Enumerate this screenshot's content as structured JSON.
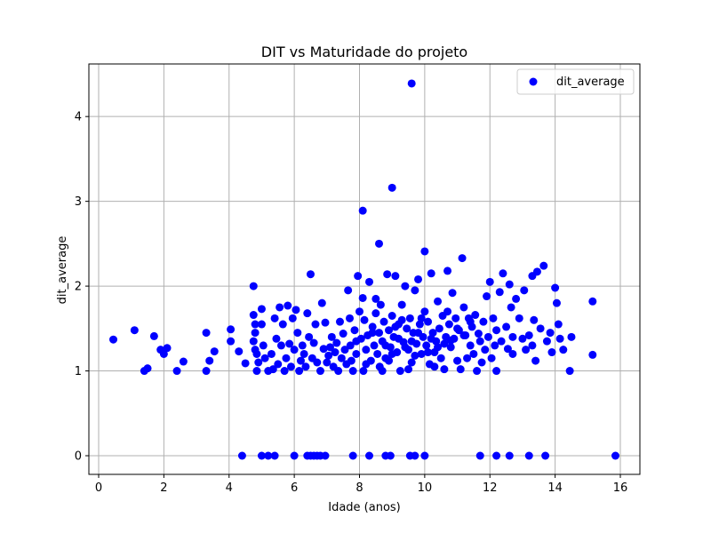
{
  "chart_data": {
    "type": "scatter",
    "title": "DIT vs Maturidade do projeto",
    "xlabel": "Idade (anos)",
    "ylabel": "dit_average",
    "xlim": [
      -0.3,
      16.6
    ],
    "ylim": [
      -0.22,
      4.62
    ],
    "xticks": [
      0,
      2,
      4,
      6,
      8,
      10,
      12,
      14,
      16
    ],
    "yticks": [
      0,
      1,
      2,
      3,
      4
    ],
    "grid": true,
    "legend": {
      "position": "top-right",
      "entries": [
        "dit_average"
      ]
    },
    "series": [
      {
        "name": "dit_average",
        "color": "#0000ff",
        "points": [
          [
            0.45,
            1.37
          ],
          [
            1.1,
            1.48
          ],
          [
            1.4,
            1.0
          ],
          [
            1.5,
            1.03
          ],
          [
            1.7,
            1.41
          ],
          [
            1.9,
            1.25
          ],
          [
            2.0,
            1.2
          ],
          [
            2.1,
            1.27
          ],
          [
            2.4,
            1.0
          ],
          [
            2.6,
            1.11
          ],
          [
            3.3,
            1.0
          ],
          [
            3.3,
            1.45
          ],
          [
            3.4,
            1.12
          ],
          [
            3.55,
            1.23
          ],
          [
            4.05,
            1.49
          ],
          [
            4.05,
            1.35
          ],
          [
            4.3,
            1.23
          ],
          [
            4.5,
            1.09
          ],
          [
            4.75,
            2.0
          ],
          [
            4.75,
            1.66
          ],
          [
            4.8,
            1.55
          ],
          [
            4.8,
            1.45
          ],
          [
            4.75,
            1.35
          ],
          [
            4.8,
            1.25
          ],
          [
            4.85,
            1.2
          ],
          [
            4.9,
            1.1
          ],
          [
            4.85,
            1.0
          ],
          [
            5.0,
            1.73
          ],
          [
            5.0,
            1.55
          ],
          [
            5.05,
            1.3
          ],
          [
            5.1,
            1.15
          ],
          [
            5.2,
            1.0
          ],
          [
            5.3,
            1.2
          ],
          [
            5.35,
            1.02
          ],
          [
            5.4,
            1.62
          ],
          [
            5.45,
            1.38
          ],
          [
            5.5,
            1.08
          ],
          [
            5.55,
            1.75
          ],
          [
            5.6,
            1.3
          ],
          [
            5.65,
            1.55
          ],
          [
            5.7,
            1.0
          ],
          [
            5.75,
            1.15
          ],
          [
            5.8,
            1.77
          ],
          [
            5.85,
            1.32
          ],
          [
            5.9,
            1.05
          ],
          [
            5.95,
            1.62
          ],
          [
            6.0,
            1.25
          ],
          [
            6.05,
            1.72
          ],
          [
            6.1,
            1.45
          ],
          [
            6.15,
            1.0
          ],
          [
            6.2,
            1.12
          ],
          [
            6.25,
            1.3
          ],
          [
            6.3,
            1.2
          ],
          [
            6.35,
            1.05
          ],
          [
            6.4,
            1.68
          ],
          [
            6.45,
            1.4
          ],
          [
            6.5,
            2.14
          ],
          [
            6.55,
            1.15
          ],
          [
            6.6,
            1.33
          ],
          [
            6.65,
            1.55
          ],
          [
            6.7,
            1.1
          ],
          [
            6.8,
            1.0
          ],
          [
            6.85,
            1.8
          ],
          [
            6.9,
            1.26
          ],
          [
            6.95,
            1.57
          ],
          [
            7.0,
            1.1
          ],
          [
            7.05,
            1.18
          ],
          [
            7.1,
            1.28
          ],
          [
            7.15,
            1.4
          ],
          [
            7.2,
            1.05
          ],
          [
            7.25,
            1.22
          ],
          [
            7.3,
            1.33
          ],
          [
            7.35,
            1.0
          ],
          [
            7.4,
            1.58
          ],
          [
            7.45,
            1.15
          ],
          [
            7.5,
            1.44
          ],
          [
            7.55,
            1.25
          ],
          [
            7.6,
            1.08
          ],
          [
            7.65,
            1.95
          ],
          [
            7.7,
            1.62
          ],
          [
            7.72,
            1.3
          ],
          [
            7.75,
            1.12
          ],
          [
            7.8,
            1.0
          ],
          [
            7.85,
            1.48
          ],
          [
            7.9,
            1.2
          ],
          [
            7.95,
            2.12
          ],
          [
            8.0,
            1.7
          ],
          [
            8.05,
            1.38
          ],
          [
            8.1,
            1.86
          ],
          [
            8.12,
            1.0
          ],
          [
            8.15,
            1.6
          ],
          [
            8.2,
            1.25
          ],
          [
            8.25,
            1.42
          ],
          [
            8.3,
            2.05
          ],
          [
            8.35,
            1.12
          ],
          [
            8.4,
            1.52
          ],
          [
            8.45,
            1.3
          ],
          [
            8.5,
            1.68
          ],
          [
            8.55,
            1.2
          ],
          [
            8.6,
            1.45
          ],
          [
            8.62,
            1.05
          ],
          [
            8.65,
            1.78
          ],
          [
            8.7,
            1.35
          ],
          [
            8.75,
            1.58
          ],
          [
            8.8,
            1.15
          ],
          [
            8.85,
            2.14
          ],
          [
            8.9,
            1.48
          ],
          [
            8.95,
            1.28
          ],
          [
            9.0,
            1.65
          ],
          [
            9.05,
            1.4
          ],
          [
            9.1,
            2.12
          ],
          [
            9.15,
            1.22
          ],
          [
            9.2,
            1.55
          ],
          [
            9.25,
            1.0
          ],
          [
            9.3,
            1.78
          ],
          [
            9.35,
            1.34
          ],
          [
            9.4,
            2.0
          ],
          [
            9.45,
            1.5
          ],
          [
            9.5,
            1.25
          ],
          [
            9.55,
            1.62
          ],
          [
            9.6,
            1.1
          ],
          [
            9.65,
            1.45
          ],
          [
            9.7,
            1.95
          ],
          [
            9.75,
            1.32
          ],
          [
            9.8,
            2.08
          ],
          [
            9.85,
            1.55
          ],
          [
            9.9,
            1.2
          ],
          [
            9.95,
            1.4
          ],
          [
            10.0,
            1.7
          ],
          [
            10.05,
            1.3
          ],
          [
            10.1,
            1.58
          ],
          [
            10.15,
            1.08
          ],
          [
            10.2,
            2.15
          ],
          [
            10.25,
            1.45
          ],
          [
            10.3,
            1.22
          ],
          [
            10.35,
            1.35
          ],
          [
            10.4,
            1.82
          ],
          [
            10.45,
            1.5
          ],
          [
            10.5,
            1.15
          ],
          [
            10.55,
            1.65
          ],
          [
            10.6,
            1.02
          ],
          [
            10.65,
            1.4
          ],
          [
            10.7,
            2.18
          ],
          [
            10.75,
            1.55
          ],
          [
            10.8,
            1.28
          ],
          [
            10.85,
            1.92
          ],
          [
            10.9,
            1.38
          ],
          [
            10.95,
            1.62
          ],
          [
            11.0,
            1.12
          ],
          [
            11.05,
            1.48
          ],
          [
            11.1,
            1.02
          ],
          [
            11.15,
            2.33
          ],
          [
            11.2,
            1.75
          ],
          [
            11.25,
            1.42
          ],
          [
            11.3,
            1.15
          ],
          [
            11.35,
            1.62
          ],
          [
            11.4,
            1.3
          ],
          [
            11.45,
            1.52
          ],
          [
            11.5,
            1.2
          ],
          [
            11.55,
            1.66
          ],
          [
            11.6,
            1.0
          ],
          [
            11.65,
            1.44
          ],
          [
            11.7,
            1.35
          ],
          [
            11.75,
            1.1
          ],
          [
            11.8,
            1.58
          ],
          [
            11.85,
            1.25
          ],
          [
            11.9,
            1.88
          ],
          [
            11.95,
            1.4
          ],
          [
            12.0,
            2.05
          ],
          [
            12.05,
            1.15
          ],
          [
            12.1,
            1.62
          ],
          [
            12.15,
            1.3
          ],
          [
            12.2,
            1.0
          ],
          [
            12.3,
            1.93
          ],
          [
            12.35,
            1.35
          ],
          [
            12.4,
            2.15
          ],
          [
            12.5,
            1.52
          ],
          [
            12.55,
            1.26
          ],
          [
            12.6,
            2.02
          ],
          [
            12.65,
            1.75
          ],
          [
            12.7,
            1.4
          ],
          [
            12.8,
            1.85
          ],
          [
            12.9,
            1.62
          ],
          [
            13.0,
            1.38
          ],
          [
            13.05,
            1.95
          ],
          [
            13.1,
            1.25
          ],
          [
            13.2,
            1.42
          ],
          [
            13.3,
            2.12
          ],
          [
            13.35,
            1.6
          ],
          [
            13.4,
            1.12
          ],
          [
            13.45,
            2.17
          ],
          [
            13.55,
            1.5
          ],
          [
            13.65,
            2.24
          ],
          [
            13.75,
            1.35
          ],
          [
            13.85,
            1.45
          ],
          [
            13.9,
            1.22
          ],
          [
            14.0,
            1.98
          ],
          [
            14.05,
            1.8
          ],
          [
            14.1,
            1.55
          ],
          [
            14.15,
            1.38
          ],
          [
            14.25,
            1.25
          ],
          [
            14.45,
            1.0
          ],
          [
            14.5,
            1.4
          ],
          [
            15.15,
            1.82
          ],
          [
            15.15,
            1.19
          ],
          [
            8.1,
            2.89
          ],
          [
            8.6,
            2.5
          ],
          [
            9.0,
            3.16
          ],
          [
            9.6,
            4.39
          ],
          [
            10.0,
            2.41
          ],
          [
            8.4,
            1.45
          ],
          [
            8.8,
            1.3
          ],
          [
            9.2,
            1.38
          ],
          [
            9.4,
            1.28
          ],
          [
            9.6,
            1.35
          ],
          [
            9.8,
            1.45
          ],
          [
            10.2,
            1.38
          ],
          [
            10.6,
            1.32
          ],
          [
            9.0,
            1.2
          ],
          [
            9.3,
            1.6
          ],
          [
            8.9,
            1.12
          ],
          [
            9.7,
            1.18
          ],
          [
            10.1,
            1.22
          ],
          [
            10.4,
            1.28
          ],
          [
            10.8,
            1.36
          ],
          [
            11.2,
            1.42
          ],
          [
            8.2,
            1.08
          ],
          [
            8.7,
            1.0
          ],
          [
            9.5,
            1.02
          ],
          [
            10.3,
            1.05
          ],
          [
            11.0,
            1.5
          ],
          [
            7.9,
            1.35
          ],
          [
            9.1,
            1.52
          ],
          [
            9.9,
            1.62
          ],
          [
            10.7,
            1.7
          ],
          [
            11.4,
            1.58
          ],
          [
            12.2,
            1.48
          ],
          [
            12.7,
            1.2
          ],
          [
            13.3,
            1.3
          ],
          [
            8.5,
            1.85
          ],
          [
            4.4,
            0
          ],
          [
            5.0,
            0
          ],
          [
            5.2,
            0
          ],
          [
            5.4,
            0
          ],
          [
            6.0,
            0
          ],
          [
            6.4,
            0
          ],
          [
            6.5,
            0
          ],
          [
            6.6,
            0
          ],
          [
            6.7,
            0
          ],
          [
            6.8,
            0
          ],
          [
            6.95,
            0
          ],
          [
            7.8,
            0
          ],
          [
            8.3,
            0
          ],
          [
            8.8,
            0
          ],
          [
            8.95,
            0
          ],
          [
            9.55,
            0
          ],
          [
            9.7,
            0
          ],
          [
            10.0,
            0
          ],
          [
            11.7,
            0
          ],
          [
            12.2,
            0
          ],
          [
            12.6,
            0
          ],
          [
            13.2,
            0
          ],
          [
            13.7,
            0
          ],
          [
            15.85,
            0
          ]
        ]
      }
    ]
  }
}
